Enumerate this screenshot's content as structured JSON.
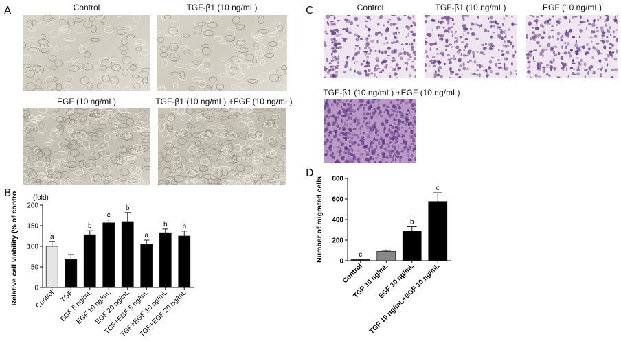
{
  "panelA": {
    "letter": "A",
    "captions": [
      "Control",
      "TGF-β1 (10 ng/mL)",
      "EGF (10 ng/mL)",
      "TGF-β1 (10 ng/mL) +EGF (10 ng/mL)"
    ]
  },
  "panelC": {
    "letter": "C",
    "captions": [
      "Control",
      "TGF-β1 (10 ng/mL)",
      "EGF (10 ng/mL)",
      "TGF-β1 (10 ng/mL) +EGF (10 ng/mL)"
    ]
  },
  "colors": {
    "phase": "#d2cfc4",
    "stain": "#7a4a93",
    "axis": "#111111"
  },
  "chart_data": [
    {
      "panel": "B",
      "type": "bar",
      "unit_label": "(fold)",
      "ylabel": "Relative cell viability (% of control)",
      "ylim": [
        0,
        200
      ],
      "yticks": [
        0,
        50,
        100,
        150,
        200
      ],
      "categories": [
        "Control",
        "TGF",
        "EGF 5 ng/mL",
        "EGF 10 ng/mL",
        "EGF 20 ng/mL",
        "TGF+EGF 5 ng/mL",
        "TGF+EGF 10 ng/mL",
        "TGF+EGF 20 ng/mL"
      ],
      "values": [
        100,
        68,
        128,
        157,
        160,
        105,
        133,
        125
      ],
      "errors": [
        12,
        12,
        10,
        7,
        22,
        10,
        9,
        12
      ],
      "letters": [
        "a",
        "",
        "b",
        "c",
        "b",
        "a",
        "b",
        "b"
      ],
      "fills": [
        "#e6e6e6",
        "#8c8c8c",
        "#c0392b",
        "#d33a2c",
        "#d33a2c",
        "#5a9a90",
        "#6aa89e",
        "#6aa89e"
      ],
      "patterns": [
        "solid",
        "dots",
        "check",
        "vline",
        "vline",
        "dots",
        "dots",
        "dots"
      ]
    },
    {
      "panel": "D",
      "type": "bar",
      "ylabel": "Number of migrated cells",
      "ylim": [
        0,
        800
      ],
      "yticks": [
        0,
        200,
        400,
        600,
        800
      ],
      "categories": [
        "Control",
        "TGF 10 ng/mL",
        "EGF 10 ng/mL",
        "TGF 10 ng/mL+EGF 10 ng/mL"
      ],
      "values": [
        10,
        90,
        290,
        575
      ],
      "errors": [
        5,
        10,
        40,
        85
      ],
      "letters": [
        "c",
        "",
        "b",
        "c"
      ],
      "fills": [
        "#222222",
        "#888888",
        "#cccccc",
        "#ffffff"
      ],
      "patterns": [
        "solid",
        "solid",
        "check",
        "hline"
      ]
    }
  ]
}
